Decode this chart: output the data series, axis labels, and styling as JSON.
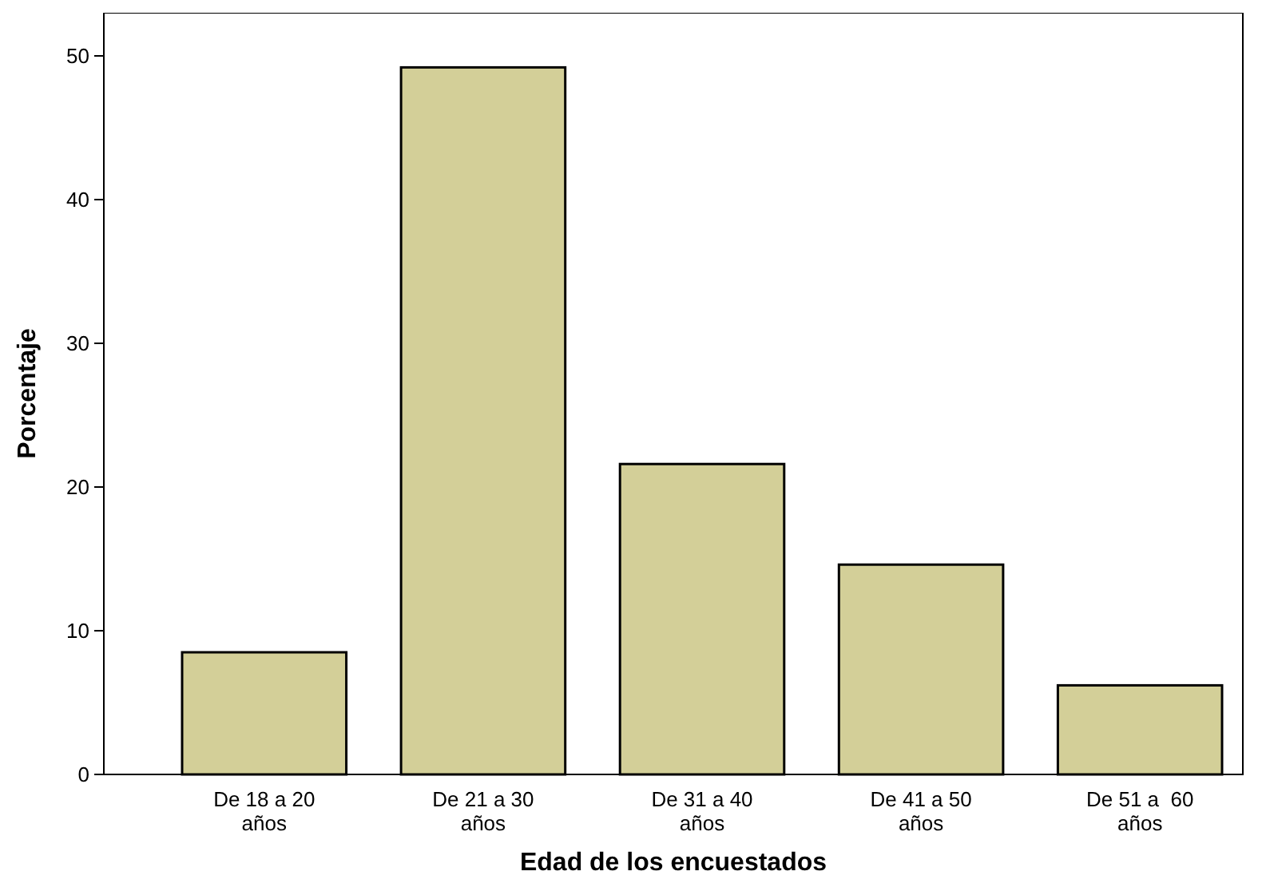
{
  "chart_data": {
    "type": "bar",
    "xlabel": "Edad de los encuestados",
    "ylabel": "Porcentaje",
    "categories": [
      "De 18 a 20 años",
      "De 21 a 30 años",
      "De 31 a 40 años",
      "De 41 a 50 años",
      "De 51 a  60 años"
    ],
    "values": [
      8.5,
      49.2,
      21.6,
      14.6,
      6.2
    ],
    "color": "#d3cf98",
    "ylim": [
      0,
      53
    ],
    "yticks": [
      0,
      10,
      20,
      30,
      40,
      50
    ],
    "grid": false
  }
}
